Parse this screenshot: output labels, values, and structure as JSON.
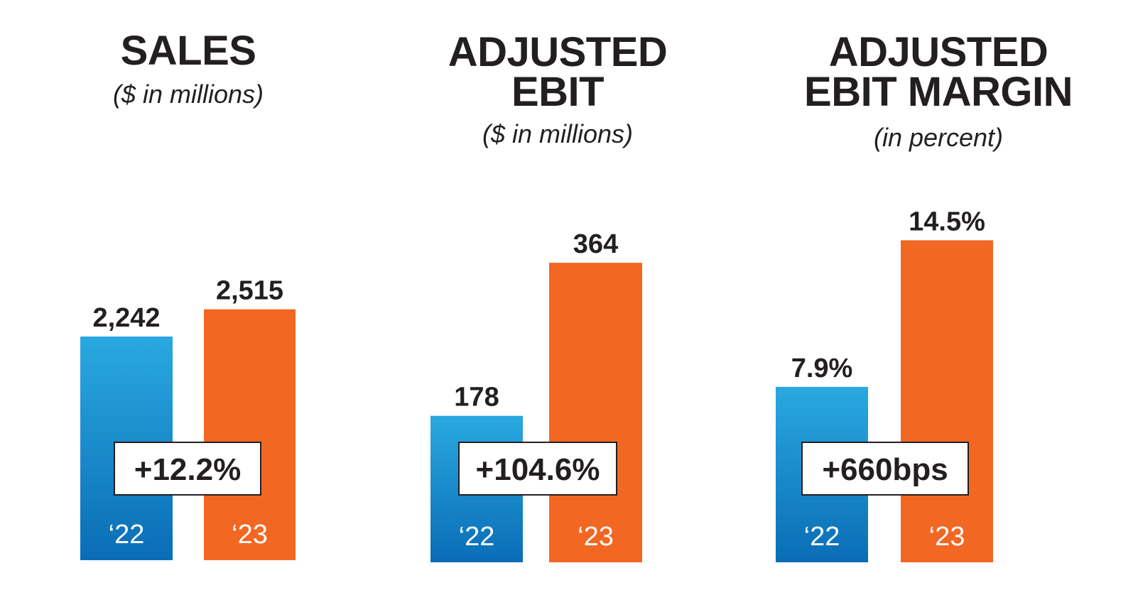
{
  "colors": {
    "bar_2022_top": "#2aa8e0",
    "bar_2022_bottom": "#0a6db6",
    "bar_2023": "#f26722",
    "text": "#231f20"
  },
  "chart_data": [
    {
      "type": "bar",
      "title": "SALES",
      "subtitle": "($ in millions)",
      "categories": [
        "‘22",
        "‘23"
      ],
      "values": [
        2242,
        2515
      ],
      "value_labels": [
        "2,242",
        "2,515"
      ],
      "change": "+12.2%"
    },
    {
      "type": "bar",
      "title": "ADJUSTED\nEBIT",
      "subtitle": "($ in millions)",
      "categories": [
        "‘22",
        "‘23"
      ],
      "values": [
        178,
        364
      ],
      "value_labels": [
        "178",
        "364"
      ],
      "change": "+104.6%"
    },
    {
      "type": "bar",
      "title": "ADJUSTED\nEBIT MARGIN",
      "subtitle": "(in percent)",
      "categories": [
        "‘22",
        "‘23"
      ],
      "values": [
        7.9,
        14.5
      ],
      "value_labels": [
        "7.9%",
        "14.5%"
      ],
      "change": "+660bps"
    }
  ]
}
